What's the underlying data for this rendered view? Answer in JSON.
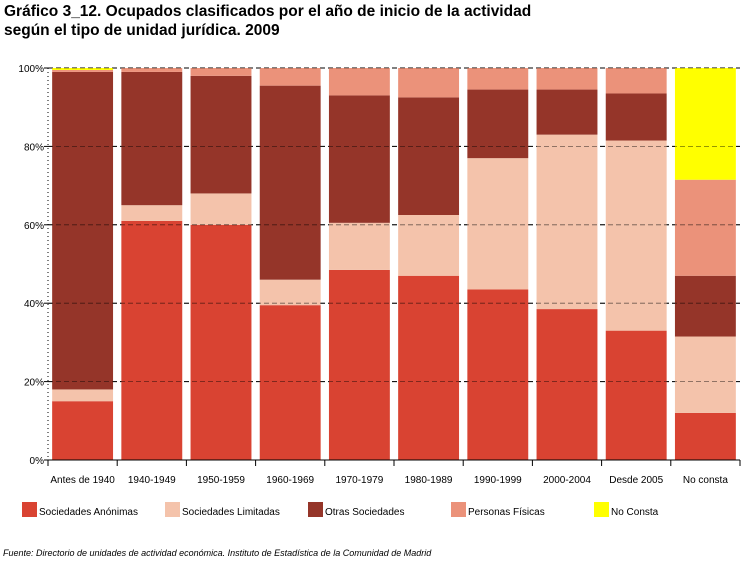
{
  "title_lines": [
    "Gráfico 3_12. Ocupados clasificados por el año de inicio de la actividad",
    "según el tipo de unidad jurídica. 2009"
  ],
  "source": "Fuente: Directorio de unidades de actividad económica. Instituto de Estadística de la Comunidad de Madrid",
  "chart_data": {
    "type": "bar",
    "stacked": true,
    "percent": true,
    "categories": [
      "Antes de 1940",
      "1940-1949",
      "1950-1959",
      "1960-1969",
      "1970-1979",
      "1980-1989",
      "1990-1999",
      "2000-2004",
      "Desde 2005",
      "No consta"
    ],
    "series": [
      {
        "name": "Sociedades Anónimas",
        "color": "#d94332",
        "values": [
          15,
          61,
          60,
          39.5,
          48.5,
          47,
          43.5,
          38.5,
          33,
          12
        ]
      },
      {
        "name": "Sociedades Limitadas",
        "color": "#f4c3ab",
        "values": [
          3,
          4,
          8,
          6.5,
          12,
          15.5,
          33.5,
          44.5,
          48.5,
          19.5
        ]
      },
      {
        "name": "Otras Sociedades",
        "color": "#953529",
        "values": [
          81,
          34,
          30,
          49.5,
          32.5,
          30,
          17.5,
          11.5,
          12,
          15.5
        ]
      },
      {
        "name": "Personas Físicas",
        "color": "#eb927a",
        "values": [
          0.5,
          1,
          2,
          4.5,
          7,
          7.5,
          5.5,
          5.5,
          6.5,
          24.5
        ]
      },
      {
        "name": "No Consta",
        "color": "#ffff00",
        "values": [
          0.5,
          0,
          0,
          0,
          0,
          0,
          0,
          0,
          0,
          28.5
        ]
      }
    ],
    "ylim": [
      0,
      100
    ],
    "yticks": [
      "0%",
      "20%",
      "40%",
      "60%",
      "80%",
      "100%"
    ],
    "grid": true,
    "legend_position": "bottom"
  }
}
